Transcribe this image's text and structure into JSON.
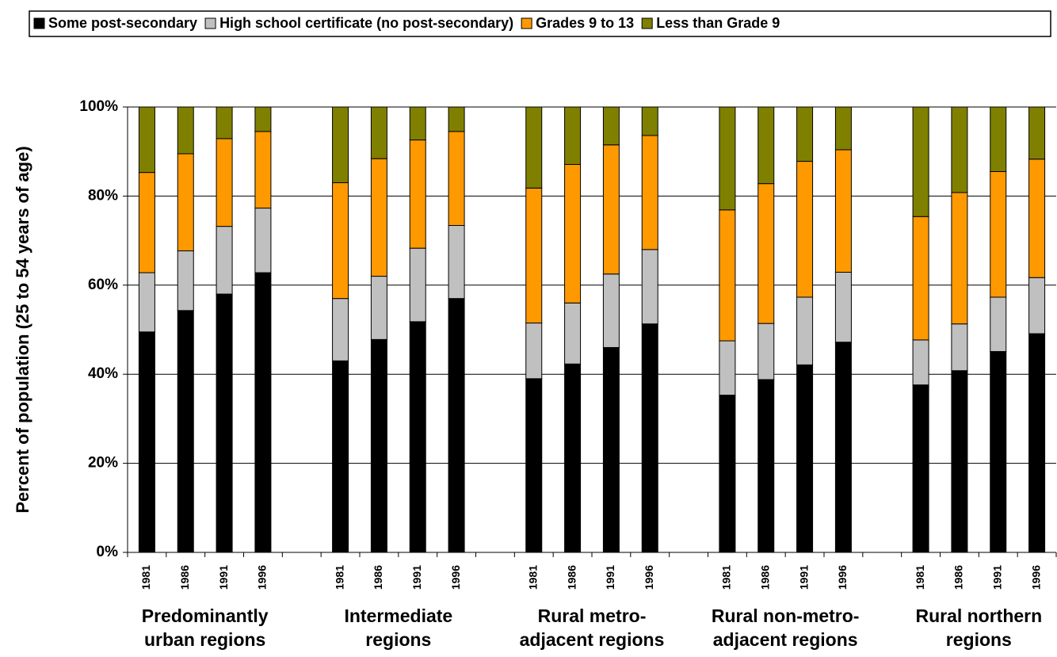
{
  "chart_data": {
    "type": "stacked_bar",
    "y_label": "Percent of population (25 to 54 years of age)",
    "categories": [
      "1981",
      "1986",
      "1991",
      "1996",
      null,
      "1981",
      "1986",
      "1991",
      "1996",
      null,
      "1981",
      "1986",
      "1991",
      "1996",
      null,
      "1981",
      "1986",
      "1991",
      "1996",
      null,
      "1981",
      "1986",
      "1991",
      "1996"
    ],
    "groups": [
      [
        "Predominantly",
        "urban regions"
      ],
      [
        "Intermediate",
        "regions"
      ],
      [
        "Rural metro-",
        "adjacent regions"
      ],
      [
        "Rural non-metro-",
        "adjacent regions"
      ],
      [
        "Rural northern",
        "regions"
      ]
    ],
    "series": [
      {
        "name": "Some post-secondary",
        "color": "#000000",
        "values": [
          49.5,
          54.3,
          58,
          62.8,
          null,
          43,
          47.8,
          51.8,
          57,
          null,
          39,
          42.3,
          46,
          51.3,
          null,
          35.3,
          38.8,
          42.1,
          47.2,
          null,
          37.6,
          40.8,
          45.1,
          49.1
        ]
      },
      {
        "name": "High school certificate (no post-secondary)",
        "color": "#c0c0c0",
        "values": [
          13.3,
          13.4,
          15.2,
          14.5,
          null,
          14,
          14.2,
          16.5,
          16.4,
          null,
          12.5,
          13.7,
          16.5,
          16.7,
          null,
          12.2,
          12.6,
          15.2,
          15.7,
          null,
          10.1,
          10.5,
          12.2,
          12.6
        ]
      },
      {
        "name": "Grades 9 to 13",
        "color": "#ff9900",
        "values": [
          22.5,
          21.8,
          19.7,
          17.2,
          null,
          26,
          26.4,
          24.3,
          21.1,
          null,
          30.3,
          31.1,
          29,
          25.6,
          null,
          29.4,
          31.4,
          30.5,
          27.5,
          null,
          27.7,
          29.5,
          28.2,
          26.6
        ]
      },
      {
        "name": "Less than Grade 9",
        "color": "#808000",
        "values": [
          14.7,
          10.5,
          7.1,
          5.5,
          null,
          17,
          11.6,
          7.4,
          5.5,
          null,
          18.2,
          12.9,
          8.5,
          6.4,
          null,
          23.1,
          17.2,
          12.2,
          9.6,
          null,
          24.6,
          19.2,
          14.5,
          11.7
        ]
      }
    ],
    "ylim": [
      0,
      100
    ],
    "yticks": [
      {
        "value": 0,
        "label": "0%"
      },
      {
        "value": 20,
        "label": "20%"
      },
      {
        "value": 40,
        "label": "40%"
      },
      {
        "value": 60,
        "label": "60%"
      },
      {
        "value": 80,
        "label": "80%"
      },
      {
        "value": 100,
        "label": "100%"
      }
    ],
    "grid": true
  }
}
